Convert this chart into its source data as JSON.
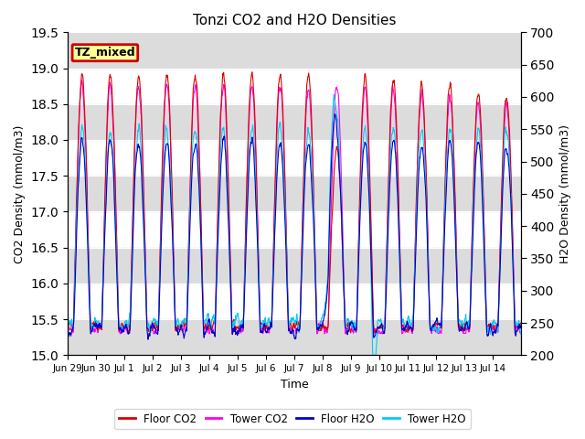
{
  "title": "Tonzi CO2 and H2O Densities",
  "xlabel": "Time",
  "ylabel_left": "CO2 Density (mmol/m3)",
  "ylabel_right": "H2O Density (mmol/m3)",
  "co2_ylim": [
    15.0,
    19.5
  ],
  "h2o_ylim": [
    200,
    700
  ],
  "co2_yticks": [
    15.0,
    15.5,
    16.0,
    16.5,
    17.0,
    17.5,
    18.0,
    18.5,
    19.0,
    19.5
  ],
  "h2o_yticks": [
    200,
    250,
    300,
    350,
    400,
    450,
    500,
    550,
    600,
    650,
    700
  ],
  "xtick_labels": [
    "Jun 29",
    "Jun 30",
    "Jul 1",
    "Jul 2",
    "Jul 3",
    "Jul 4",
    "Jul 5",
    "Jul 6",
    "Jul 7",
    "Jul 8",
    "Jul 9",
    "Jul 10",
    "Jul 11",
    "Jul 12",
    "Jul 13",
    "Jul 14"
  ],
  "floor_co2_color": "#DD0000",
  "tower_co2_color": "#FF00EE",
  "floor_h2o_color": "#0000CC",
  "tower_h2o_color": "#00CCEE",
  "tz_mixed_label": "TZ_mixed",
  "tz_bg_color": "#FFFF99",
  "tz_border_color": "#CC0000",
  "bg_band_color": "#DCDCDC",
  "legend_labels": [
    "Floor CO2",
    "Tower CO2",
    "Floor H2O",
    "Tower H2O"
  ],
  "n_days": 16,
  "pts_per_day": 96
}
